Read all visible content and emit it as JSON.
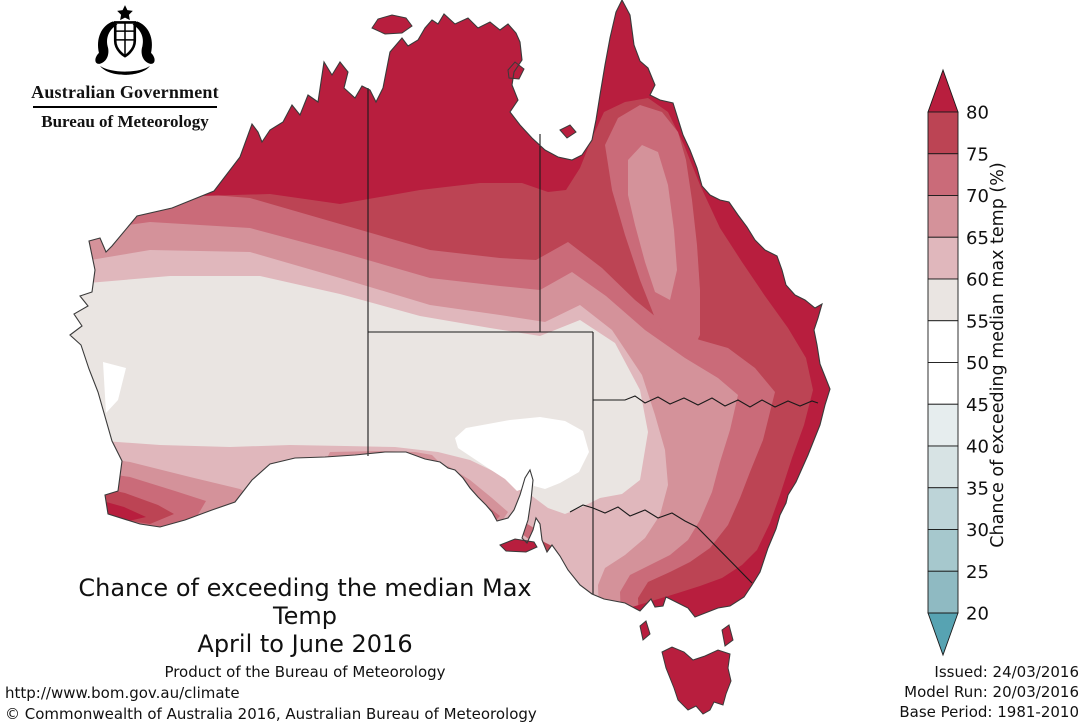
{
  "header": {
    "gov_title": "Australian Government",
    "bureau": "Bureau of Meteorology"
  },
  "title": {
    "line1": "Chance of exceeding the median Max Temp",
    "line2": "April to June 2016",
    "line3": "Product of the Bureau of Meteorology"
  },
  "legend": {
    "label": "Chance of exceeding median max temp (%)",
    "ticks": [
      80,
      75,
      70,
      65,
      60,
      55,
      50,
      45,
      40,
      35,
      30,
      25,
      20
    ],
    "cells": [
      "#bc4454",
      "#ca6b79",
      "#d4929a",
      "#e0b7bc",
      "#eae5e2",
      "#ffffff",
      "#ffffff",
      "#e6edee",
      "#d7e3e4",
      "#bdd4d8",
      "#a6c8cd",
      "#8fbac2"
    ],
    "arrow_top_color": "#b81e3e",
    "arrow_bottom_color": "#57a3b2"
  },
  "palette": {
    "gt80": "#b81e3e",
    "b75_80": "#bc4454",
    "b70_75": "#ca6b79",
    "b65_70": "#d4929a",
    "b60_65": "#e0b7bc",
    "b55_60": "#eae5e2",
    "b50_55": "#ffffff",
    "border_line": "#1a1a1a",
    "coast_line": "#3a3a3a"
  },
  "footer": {
    "url": "http://www.bom.gov.au/climate",
    "copyright": "© Commonwealth of Australia 2016, Australian Bureau of Meteorology"
  },
  "issue_info": {
    "issued": "Issued: 24/03/2016",
    "model_run": "Model Run: 20/03/2016",
    "base_period": "Base Period: 1981-2010"
  },
  "chart_data": {
    "type": "heatmap",
    "subtype": "probability-contour-map",
    "region": "Australia",
    "title": "Chance of exceeding the median Max Temp",
    "period": "April to June 2016",
    "variable": "Chance of exceeding median max temp (%)",
    "band_boundaries_percent": [
      20,
      25,
      30,
      35,
      40,
      45,
      50,
      55,
      60,
      65,
      70,
      75,
      80
    ],
    "legend_position": "right-vertical",
    "observed_pattern": {
      "northern_australia_kimberley_top_end_cape_york": ">80",
      "tasmania_and_bass_strait_islands": ">80",
      "east_coast_strip_qld_nsw": ">80",
      "southern_victoria_coast_and_mt_gambier": "75-80 to >80",
      "southwest_wa_tip": "70-80 to >80",
      "kangaroo_island_and_sa_peninsula_tips": "70-80 to >80",
      "central_queensland_inland_pocket": "65-75",
      "central_interior_wa_sa_west_nsw": "55-60",
      "central_south_australia_pocket": "50-55",
      "west_coast_sliver_near_shark_bay": "50-55"
    }
  }
}
